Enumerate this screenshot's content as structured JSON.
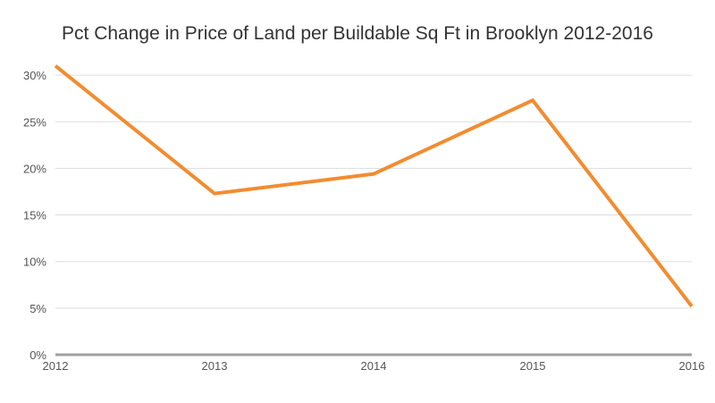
{
  "chart_data": {
    "type": "line",
    "title": "Pct Change in Price of Land per Buildable Sq Ft in Brooklyn 2012-2016",
    "xlabel": "",
    "ylabel": "",
    "x": [
      "2012",
      "2013",
      "2014",
      "2015",
      "2016"
    ],
    "series": [
      {
        "values": [
          31.0,
          17.3,
          19.4,
          27.3,
          5.2
        ],
        "color": "#f28c30"
      }
    ],
    "yticks": [
      0,
      5,
      10,
      15,
      20,
      25,
      30
    ],
    "ytick_labels": [
      "0%",
      "5%",
      "10%",
      "15%",
      "20%",
      "25%",
      "30%"
    ],
    "ylim": [
      0,
      31
    ],
    "grid": true,
    "colors": {
      "line": "#f28c30",
      "grid": "#dddddd",
      "axis": "#a0a0a0"
    }
  }
}
